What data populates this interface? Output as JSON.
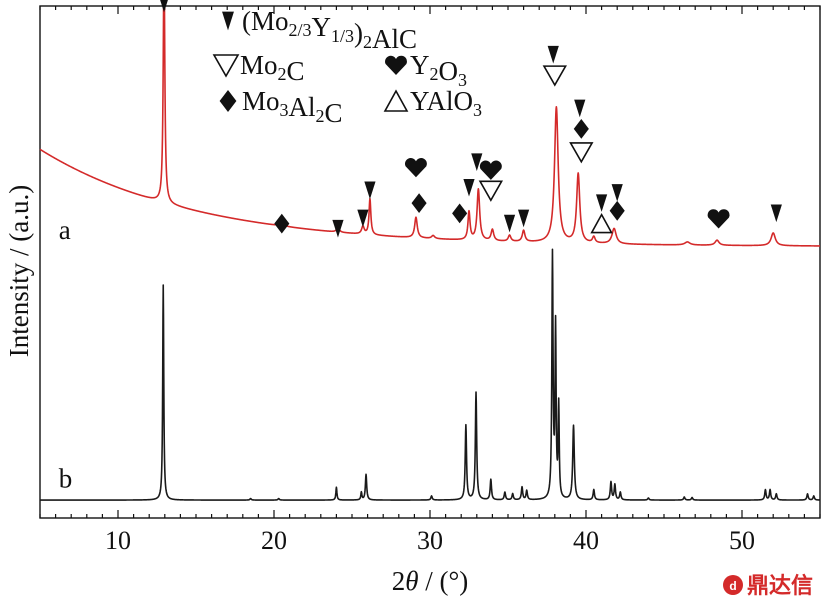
{
  "chart_data": {
    "type": "line",
    "xlabel_prefix": "2",
    "xlabel_symbol": "θ",
    "xlabel_suffix": " / (°)",
    "ylabel": "Intensity / (a.u.)",
    "xlim": [
      5,
      55
    ],
    "ylim": [
      0,
      1
    ],
    "x_ticks": [
      10,
      20,
      30,
      40,
      50
    ],
    "x_minor_step": 1,
    "y_ticks": [],
    "grid": false,
    "legend_position": "top",
    "legend": [
      {
        "symbol": "filled-down-triangle",
        "pre": "(Mo",
        "s1": "2/3",
        "mid": "Y",
        "s2": "1/3",
        "mid2": ")",
        "s3": "2",
        "post": "AlC"
      },
      {
        "symbol": "open-down-triangle",
        "pre": "Mo",
        "s1": "2",
        "mid": "C",
        "s2": "",
        "mid2": "",
        "s3": "",
        "post": ""
      },
      {
        "symbol": "heart",
        "pre": "Y",
        "s1": "2",
        "mid": "O",
        "s2": "3",
        "mid2": "",
        "s3": "",
        "post": ""
      },
      {
        "symbol": "diamond",
        "pre": "Mo",
        "s1": "3",
        "mid": "Al",
        "s2": "2",
        "mid2": "C",
        "s3": "",
        "post": ""
      },
      {
        "symbol": "open-up-triangle",
        "pre": "YAlO",
        "s1": "3",
        "mid": "",
        "s2": "",
        "mid2": "",
        "s3": "",
        "post": ""
      }
    ],
    "series": [
      {
        "name": "a",
        "color": "#d42a2a",
        "base_start": 0.72,
        "base_end": 0.53,
        "decay": 5,
        "peaks": [
          [
            12.95,
            0.475,
            0.06
          ],
          [
            20.5,
            0.006,
            0.15
          ],
          [
            24.1,
            0.01,
            0.1
          ],
          [
            25.7,
            0.015,
            0.1
          ],
          [
            26.15,
            0.07,
            0.07
          ],
          [
            29.1,
            0.04,
            0.1
          ],
          [
            30.2,
            0.006,
            0.12
          ],
          [
            32.5,
            0.055,
            0.08
          ],
          [
            33.1,
            0.1,
            0.1
          ],
          [
            34.0,
            0.022,
            0.1
          ],
          [
            35.1,
            0.012,
            0.1
          ],
          [
            36.0,
            0.022,
            0.1
          ],
          [
            38.1,
            0.265,
            0.14
          ],
          [
            39.5,
            0.135,
            0.12
          ],
          [
            40.5,
            0.012,
            0.1
          ],
          [
            41.8,
            0.03,
            0.16
          ],
          [
            46.5,
            0.006,
            0.2
          ],
          [
            48.4,
            0.01,
            0.15
          ],
          [
            52.0,
            0.025,
            0.16
          ]
        ]
      },
      {
        "name": "b",
        "color": "#1a1a1a",
        "base_start": 0.035,
        "base_end": 0.035,
        "decay": 5,
        "peaks": [
          [
            12.9,
            0.42,
            0.04
          ],
          [
            18.5,
            0.003,
            0.05
          ],
          [
            20.3,
            0.003,
            0.05
          ],
          [
            24.0,
            0.025,
            0.04
          ],
          [
            25.6,
            0.015,
            0.04
          ],
          [
            25.9,
            0.05,
            0.05
          ],
          [
            30.1,
            0.008,
            0.05
          ],
          [
            32.3,
            0.146,
            0.05
          ],
          [
            32.95,
            0.21,
            0.05
          ],
          [
            33.9,
            0.04,
            0.05
          ],
          [
            34.8,
            0.015,
            0.05
          ],
          [
            35.3,
            0.012,
            0.05
          ],
          [
            35.9,
            0.025,
            0.05
          ],
          [
            36.2,
            0.018,
            0.05
          ],
          [
            37.85,
            0.475,
            0.045
          ],
          [
            38.05,
            0.33,
            0.04
          ],
          [
            38.25,
            0.18,
            0.04
          ],
          [
            39.2,
            0.145,
            0.06
          ],
          [
            40.5,
            0.02,
            0.05
          ],
          [
            41.6,
            0.035,
            0.05
          ],
          [
            41.85,
            0.03,
            0.05
          ],
          [
            42.2,
            0.015,
            0.05
          ],
          [
            44.0,
            0.004,
            0.05
          ],
          [
            46.3,
            0.006,
            0.05
          ],
          [
            46.8,
            0.005,
            0.05
          ],
          [
            51.5,
            0.02,
            0.05
          ],
          [
            51.8,
            0.02,
            0.05
          ],
          [
            52.2,
            0.012,
            0.05
          ],
          [
            54.2,
            0.012,
            0.05
          ],
          [
            54.6,
            0.008,
            0.05
          ]
        ]
      }
    ],
    "markers": [
      {
        "symbol": "filled-down-triangle",
        "x": 12.95,
        "y": 1.005
      },
      {
        "symbol": "diamond",
        "x": 20.5,
        "y": 0.575
      },
      {
        "symbol": "filled-down-triangle",
        "x": 24.1,
        "y": 0.565
      },
      {
        "symbol": "filled-down-triangle",
        "x": 25.7,
        "y": 0.585
      },
      {
        "symbol": "filled-down-triangle",
        "x": 26.15,
        "y": 0.64
      },
      {
        "symbol": "heart",
        "x": 29.1,
        "y": 0.685
      },
      {
        "symbol": "diamond",
        "x": 29.3,
        "y": 0.615
      },
      {
        "symbol": "diamond",
        "x": 31.9,
        "y": 0.595
      },
      {
        "symbol": "filled-down-triangle",
        "x": 32.5,
        "y": 0.645
      },
      {
        "symbol": "filled-down-triangle",
        "x": 33.0,
        "y": 0.695
      },
      {
        "symbol": "heart",
        "x": 33.9,
        "y": 0.68
      },
      {
        "symbol": "open-down-triangle",
        "x": 33.9,
        "y": 0.64
      },
      {
        "symbol": "filled-down-triangle",
        "x": 35.1,
        "y": 0.575
      },
      {
        "symbol": "filled-down-triangle",
        "x": 36.0,
        "y": 0.585
      },
      {
        "symbol": "filled-down-triangle",
        "x": 37.9,
        "y": 0.905
      },
      {
        "symbol": "open-down-triangle",
        "x": 38.0,
        "y": 0.865
      },
      {
        "symbol": "filled-down-triangle",
        "x": 39.6,
        "y": 0.8
      },
      {
        "symbol": "diamond",
        "x": 39.7,
        "y": 0.76
      },
      {
        "symbol": "open-down-triangle",
        "x": 39.7,
        "y": 0.715
      },
      {
        "symbol": "filled-down-triangle",
        "x": 41.0,
        "y": 0.615
      },
      {
        "symbol": "open-up-triangle",
        "x": 41.0,
        "y": 0.575
      },
      {
        "symbol": "diamond",
        "x": 42.0,
        "y": 0.6
      },
      {
        "symbol": "filled-down-triangle",
        "x": 42.0,
        "y": 0.635
      },
      {
        "symbol": "heart",
        "x": 48.5,
        "y": 0.585
      },
      {
        "symbol": "filled-down-triangle",
        "x": 52.2,
        "y": 0.595
      }
    ],
    "series_labels": [
      {
        "text": "a",
        "x": 6.2,
        "y": 0.545
      },
      {
        "text": "b",
        "x": 6.2,
        "y": 0.06
      }
    ]
  },
  "watermark": {
    "text": "鼎达信"
  }
}
